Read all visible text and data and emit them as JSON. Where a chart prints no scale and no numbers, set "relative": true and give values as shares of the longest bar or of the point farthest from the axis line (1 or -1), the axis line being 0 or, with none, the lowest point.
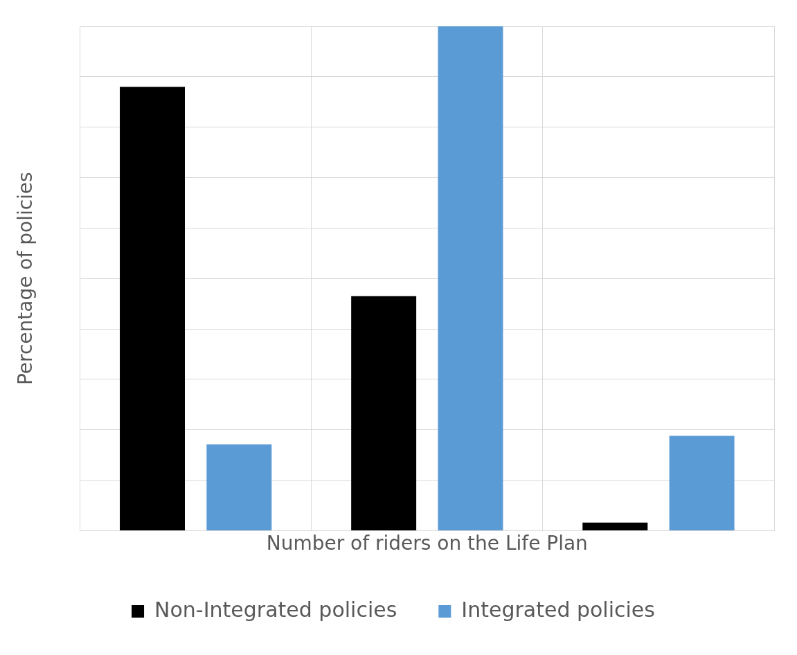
{
  "chart_data": {
    "type": "bar",
    "xlabel": "Number of riders on the Life Plan",
    "ylabel": "Percentage of policies",
    "categories": [
      null,
      null,
      null
    ],
    "relative": true,
    "grid": true,
    "legend": "bottom",
    "series": [
      {
        "name": "Non-Integrated policies",
        "color": "#000000",
        "values": [
          0.88,
          0.465,
          0.016
        ]
      },
      {
        "name": "Integrated policies",
        "color": "#5b9bd5",
        "values": [
          0.171,
          1,
          0.188
        ]
      }
    ]
  }
}
